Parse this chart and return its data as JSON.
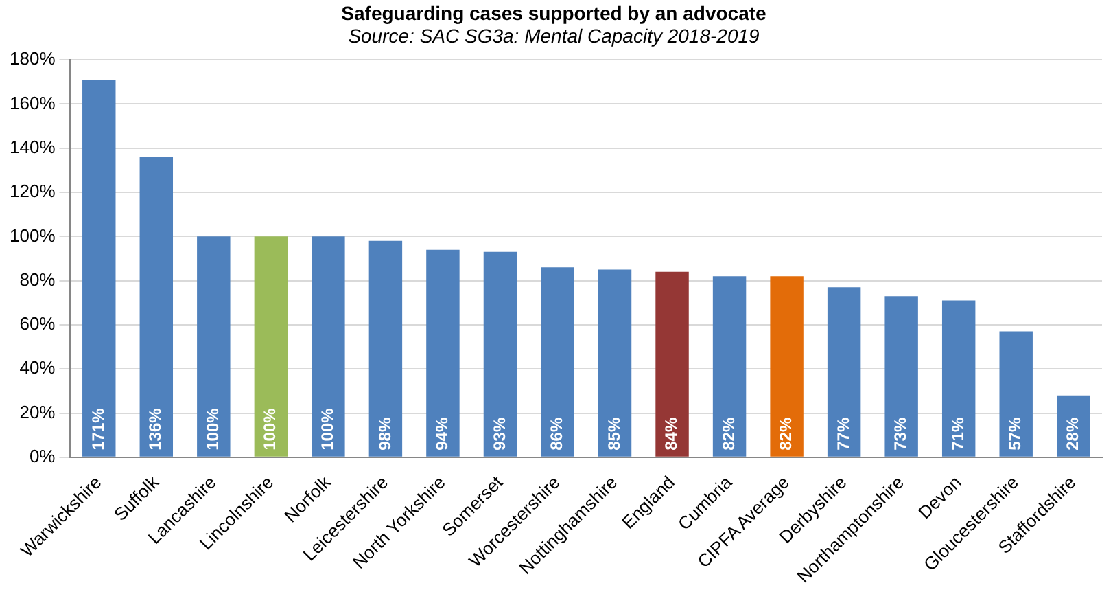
{
  "chart_data": {
    "type": "bar",
    "title": "Safeguarding cases supported by an advocate",
    "subtitle": "Source: SAC SG3a: Mental Capacity 2018-2019",
    "categories": [
      "Warwickshire",
      "Suffolk",
      "Lancashire",
      "Lincolnshire",
      "Norfolk",
      "Leicestershire",
      "North Yorkshire",
      "Somerset",
      "Worcestershire",
      "Nottinghamshire",
      "England",
      "Cumbria",
      "CIPFA Average",
      "Derbyshire",
      "Northamptonshire",
      "Devon",
      "Gloucestershire",
      "Staffordshire"
    ],
    "values": [
      171,
      136,
      100,
      100,
      100,
      98,
      94,
      93,
      86,
      85,
      84,
      82,
      82,
      77,
      73,
      71,
      57,
      28
    ],
    "colors": [
      "#4f81bd",
      "#4f81bd",
      "#4f81bd",
      "#9bbb59",
      "#4f81bd",
      "#4f81bd",
      "#4f81bd",
      "#4f81bd",
      "#4f81bd",
      "#4f81bd",
      "#953735",
      "#4f81bd",
      "#e36c09",
      "#4f81bd",
      "#4f81bd",
      "#4f81bd",
      "#4f81bd",
      "#4f81bd"
    ],
    "value_labels": [
      "171%",
      "136%",
      "100%",
      "100%",
      "100%",
      "98%",
      "94%",
      "93%",
      "86%",
      "85%",
      "84%",
      "82%",
      "82%",
      "77%",
      "73%",
      "71%",
      "57%",
      "28%"
    ],
    "ylim": [
      0,
      180
    ],
    "yticks": [
      {
        "value": 0,
        "label": "0%"
      },
      {
        "value": 20,
        "label": "20%"
      },
      {
        "value": 40,
        "label": "40%"
      },
      {
        "value": 60,
        "label": "60%"
      },
      {
        "value": 80,
        "label": "80%"
      },
      {
        "value": 100,
        "label": "100%"
      },
      {
        "value": 120,
        "label": "120%"
      },
      {
        "value": 140,
        "label": "140%"
      },
      {
        "value": 160,
        "label": "160%"
      },
      {
        "value": 180,
        "label": "180%"
      }
    ],
    "grid": "y"
  }
}
